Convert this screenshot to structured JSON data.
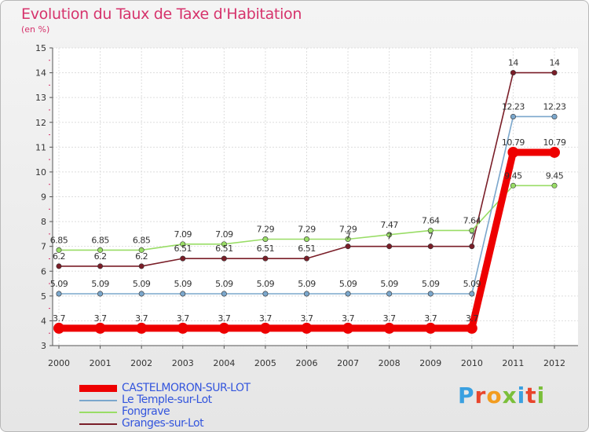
{
  "header": {
    "title": "Evolution du Taux de Taxe d'Habitation",
    "subtitle": "(en %)"
  },
  "brand": {
    "text": "Proxiti",
    "letter_colors": [
      "#3aa0e0",
      "#e8452c",
      "#f29c1f",
      "#7bbf3a",
      "#3aa0e0",
      "#e8452c",
      "#7bbf3a"
    ]
  },
  "chart_data": {
    "type": "line",
    "x": [
      "2000",
      "2001",
      "2002",
      "2003",
      "2004",
      "2005",
      "2006",
      "2007",
      "2008",
      "2009",
      "2010",
      "2011",
      "2012"
    ],
    "ylim": [
      3,
      15
    ],
    "yticks": [
      3,
      4,
      5,
      6,
      7,
      8,
      9,
      10,
      11,
      12,
      13,
      14,
      15
    ],
    "grid": true,
    "legend_position": "bottom-left",
    "series": [
      {
        "name": "Granges-sur-Lot",
        "color": "#7a1e28",
        "values": [
          6.2,
          6.2,
          6.2,
          6.51,
          6.51,
          6.51,
          6.51,
          7,
          7,
          7,
          7,
          14,
          14
        ],
        "labels": [
          "6.2",
          "6.2",
          "6.2",
          "6.51",
          "6.51",
          "6.51",
          "6.51",
          "7",
          "7",
          "7",
          "7",
          "14",
          "14"
        ]
      },
      {
        "name": "Fongrave",
        "color": "#99dd66",
        "values": [
          6.85,
          6.85,
          6.85,
          7.09,
          7.09,
          7.29,
          7.29,
          7.29,
          7.47,
          7.64,
          7.64,
          9.45,
          9.45
        ],
        "labels": [
          "6.85",
          "6.85",
          "6.85",
          "7.09",
          "7.09",
          "7.29",
          "7.29",
          "7.29",
          "7.47",
          "7.64",
          "7.64",
          "9.45",
          "9.45"
        ]
      },
      {
        "name": "Le Temple-sur-Lot",
        "color": "#7ba7cc",
        "values": [
          5.09,
          5.09,
          5.09,
          5.09,
          5.09,
          5.09,
          5.09,
          5.09,
          5.09,
          5.09,
          5.09,
          12.23,
          12.23
        ],
        "labels": [
          "5.09",
          "5.09",
          "5.09",
          "5.09",
          "5.09",
          "5.09",
          "5.09",
          "5.09",
          "5.09",
          "5.09",
          "5.09",
          "12.23",
          "12.23"
        ]
      },
      {
        "name": "CASTELMORON-SUR-LOT",
        "color": "#ee0000",
        "values": [
          3.7,
          3.7,
          3.7,
          3.7,
          3.7,
          3.7,
          3.7,
          3.7,
          3.7,
          3.7,
          3.7,
          10.79,
          10.79
        ],
        "labels": [
          "3.7",
          "3.7",
          "3.7",
          "3.7",
          "3.7",
          "3.7",
          "3.7",
          "3.7",
          "3.7",
          "3.7",
          "3.7",
          "10.79",
          "10.79"
        ]
      }
    ],
    "legend_order": [
      "CASTELMORON-SUR-LOT",
      "Le Temple-sur-Lot",
      "Fongrave",
      "Granges-sur-Lot"
    ]
  }
}
